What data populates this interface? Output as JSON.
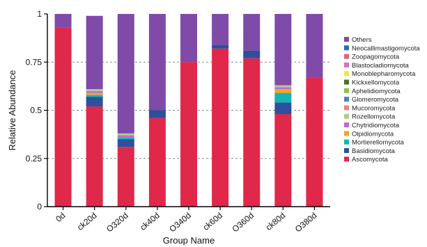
{
  "chart_data": {
    "type": "bar",
    "stacked": true,
    "title": "",
    "xlabel": "Group Name",
    "ylabel": "Relative Abundance",
    "ylim": [
      0,
      1
    ],
    "yticks": [
      "0",
      "0.25",
      "0.5",
      "0.75",
      "1"
    ],
    "grid": "dashed horizontal at 0.25, 0.5, 0.75",
    "legend_position": "right",
    "categories": [
      "0d",
      "ck20d",
      "O320d",
      "ck40d",
      "O340d",
      "ck60d",
      "O360d",
      "ck80d",
      "O380d"
    ],
    "series": [
      {
        "name": "Ascomycota",
        "color": "#e0284a",
        "values": [
          0.93,
          0.52,
          0.31,
          0.46,
          0.75,
          0.82,
          0.77,
          0.48,
          0.67
        ]
      },
      {
        "name": "Basidiomycota",
        "color": "#2e4f9c",
        "values": [
          0.0,
          0.05,
          0.04,
          0.04,
          0.0,
          0.02,
          0.04,
          0.06,
          0.0
        ]
      },
      {
        "name": "Mortierellomycota",
        "color": "#14b4b4",
        "values": [
          0.0,
          0.01,
          0.01,
          0.0,
          0.0,
          0.0,
          0.0,
          0.05,
          0.0
        ]
      },
      {
        "name": "Olpidiomycota",
        "color": "#f5a623",
        "values": [
          0.0,
          0.01,
          0.0,
          0.0,
          0.0,
          0.0,
          0.0,
          0.02,
          0.0
        ]
      },
      {
        "name": "Chytridiomycota",
        "color": "#c06bd0",
        "values": [
          0.0,
          0.01,
          0.01,
          0.0,
          0.0,
          0.0,
          0.0,
          0.01,
          0.0
        ]
      },
      {
        "name": "Rozellomycota",
        "color": "#a8d08d",
        "values": [
          0.0,
          0.01,
          0.01,
          0.0,
          0.0,
          0.0,
          0.0,
          0.01,
          0.0
        ]
      },
      {
        "name": "Mucoromycota",
        "color": "#f08080",
        "values": [
          0.0,
          0.0,
          0.0,
          0.0,
          0.0,
          0.0,
          0.0,
          0.0,
          0.0
        ]
      },
      {
        "name": "Glomeromycota",
        "color": "#4a86c5",
        "values": [
          0.0,
          0.0,
          0.0,
          0.0,
          0.0,
          0.0,
          0.0,
          0.0,
          0.0
        ]
      },
      {
        "name": "Aphelidiomycota",
        "color": "#8bc34a",
        "values": [
          0.0,
          0.0,
          0.0,
          0.0,
          0.0,
          0.0,
          0.0,
          0.0,
          0.0
        ]
      },
      {
        "name": "Kickxellomycota",
        "color": "#556b2f",
        "values": [
          0.0,
          0.0,
          0.0,
          0.0,
          0.0,
          0.0,
          0.0,
          0.0,
          0.0
        ]
      },
      {
        "name": "Monoblepharomycota",
        "color": "#f2e44a",
        "values": [
          0.0,
          0.0,
          0.0,
          0.0,
          0.0,
          0.0,
          0.0,
          0.0,
          0.0
        ]
      },
      {
        "name": "Blastocladiomycota",
        "color": "#d470c4",
        "values": [
          0.0,
          0.0,
          0.0,
          0.0,
          0.0,
          0.0,
          0.0,
          0.0,
          0.0
        ]
      },
      {
        "name": "Zoopagomycota",
        "color": "#e8607a",
        "values": [
          0.0,
          0.0,
          0.0,
          0.0,
          0.0,
          0.0,
          0.0,
          0.0,
          0.0
        ]
      },
      {
        "name": "Neocallimastigomycota",
        "color": "#2a6fb0",
        "values": [
          0.0,
          0.0,
          0.0,
          0.0,
          0.0,
          0.0,
          0.0,
          0.0,
          0.0
        ]
      },
      {
        "name": "Others",
        "color": "#7f4aa8",
        "values": [
          0.07,
          0.38,
          0.62,
          0.5,
          0.25,
          0.16,
          0.19,
          0.37,
          0.33
        ]
      }
    ]
  }
}
